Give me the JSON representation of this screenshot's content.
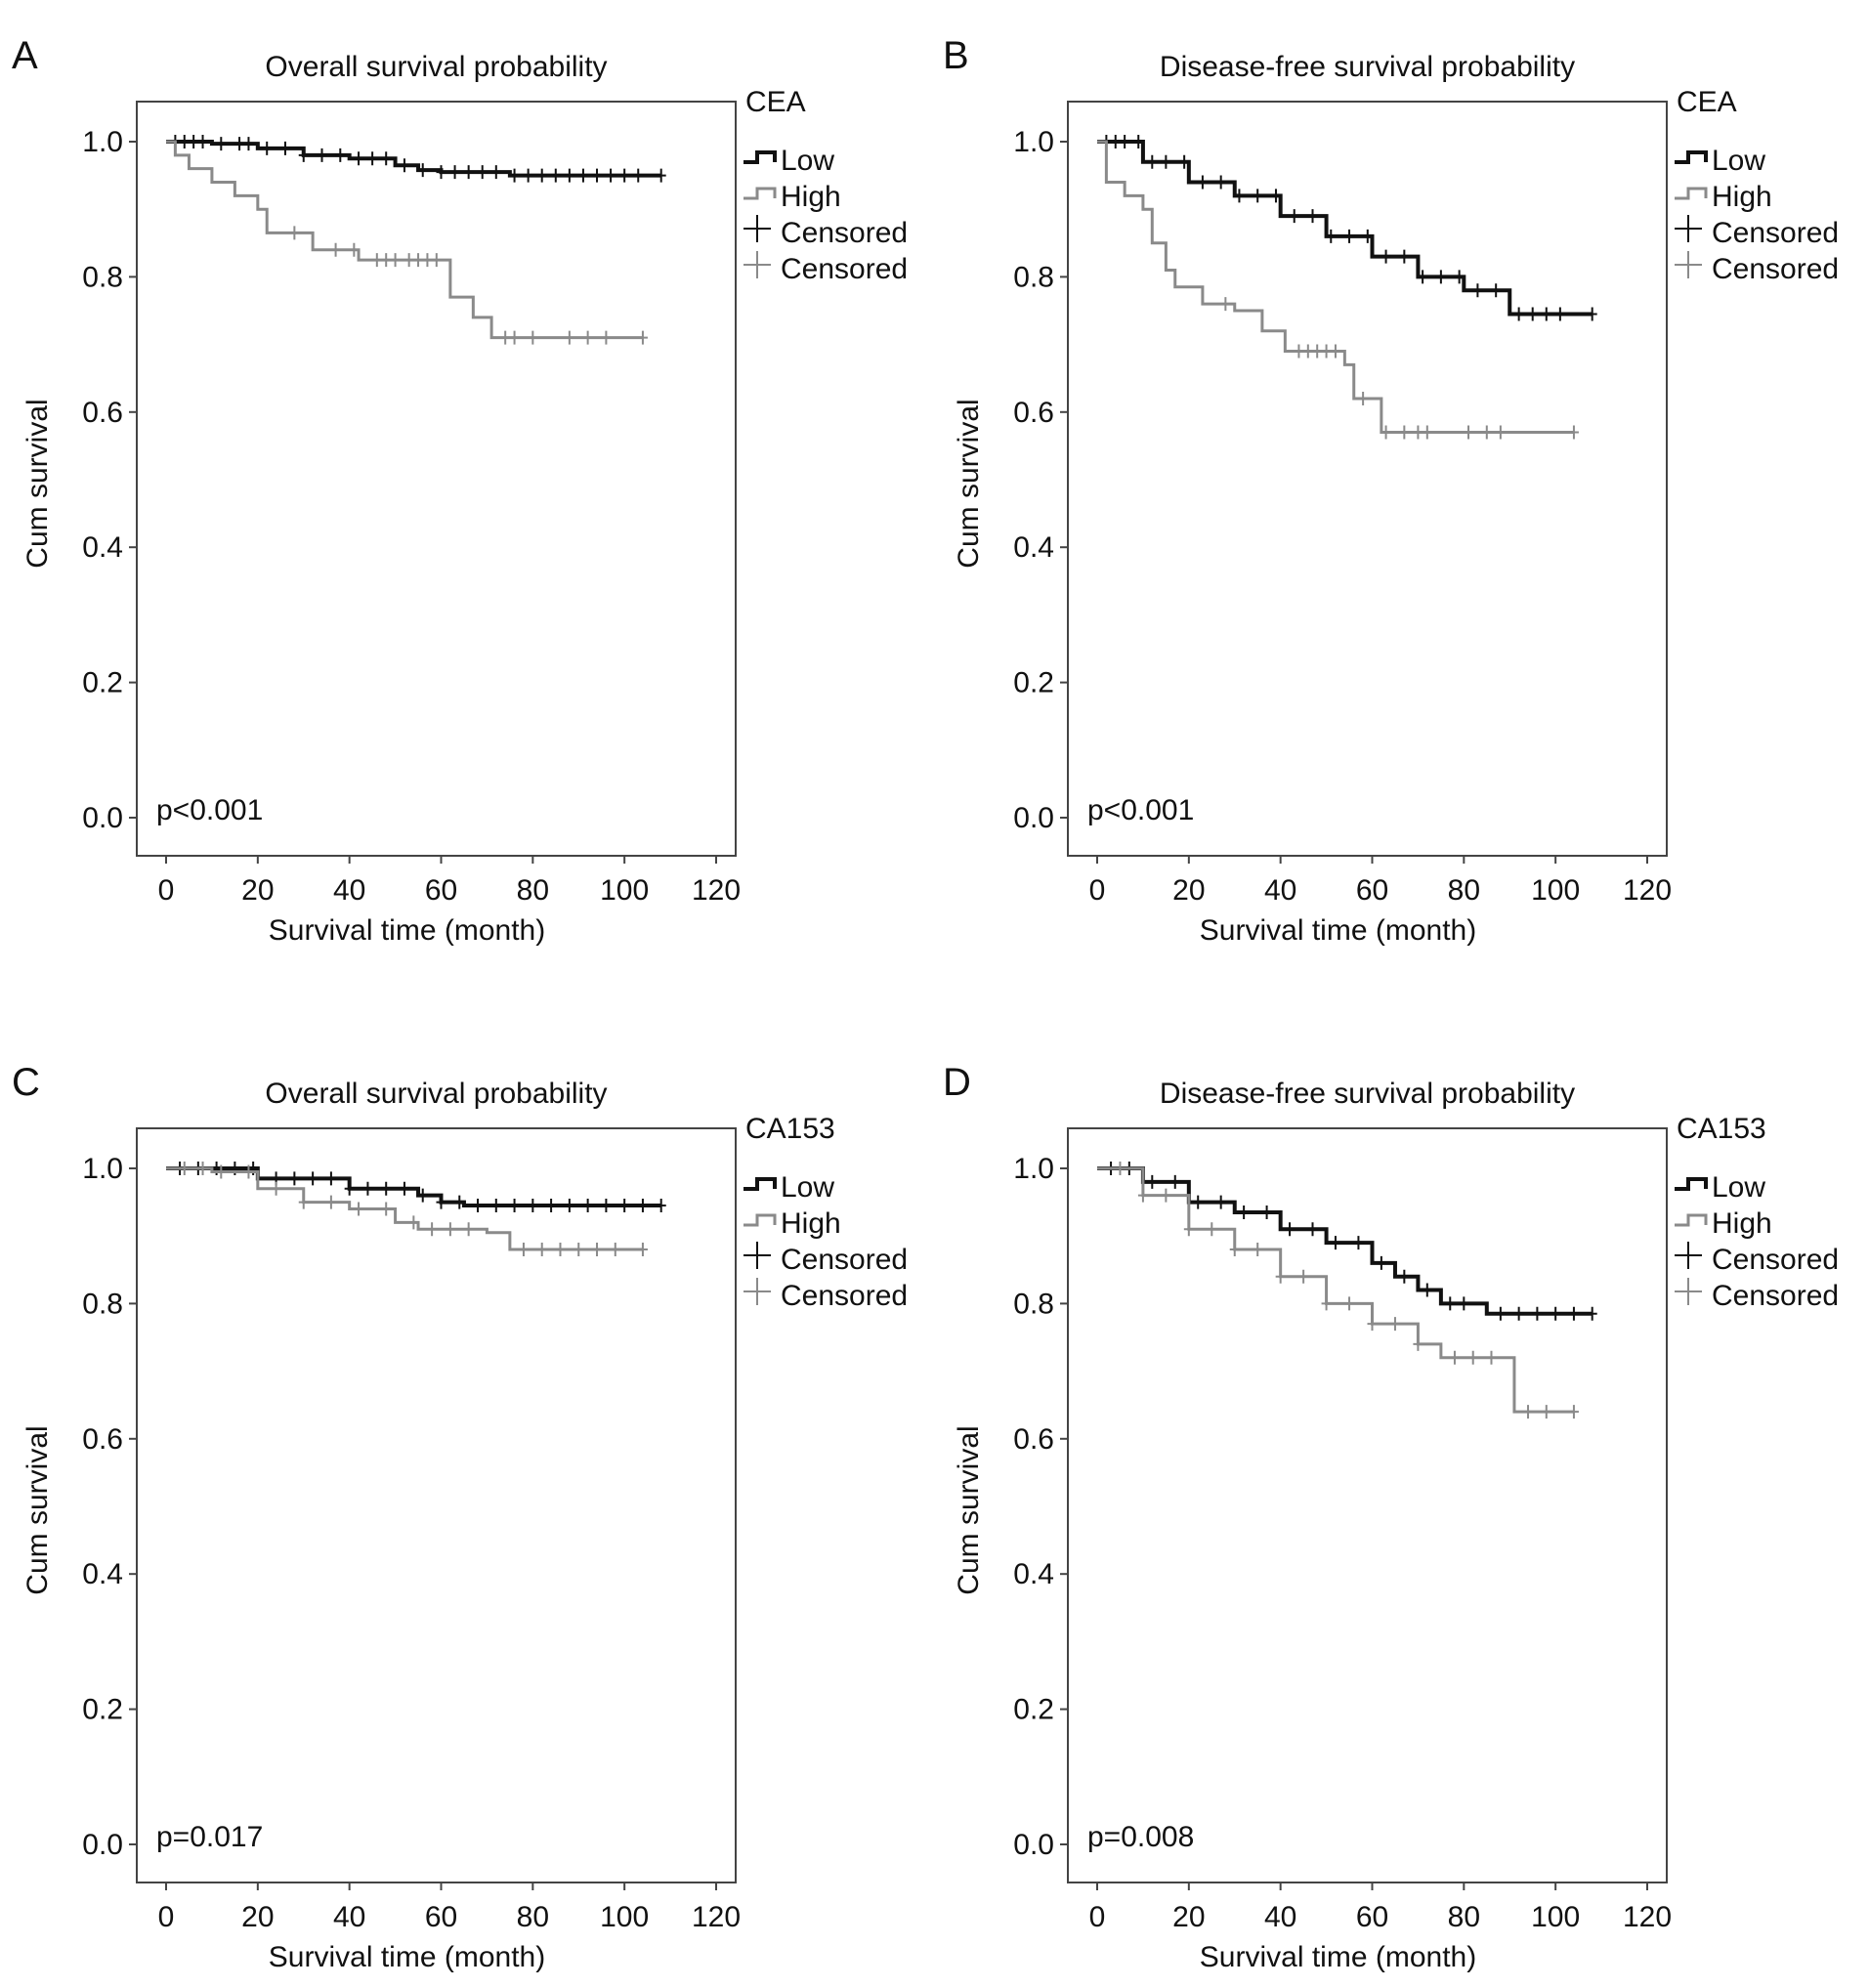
{
  "colors": {
    "low": "#111111",
    "high": "#8a8a8a"
  },
  "chart_data": [
    {
      "panel": "A",
      "type": "line",
      "title": "Overall survival probability",
      "legend_title": "CEA",
      "xlabel": "Survival time (month)",
      "ylabel": "Cum survival",
      "xlim": [
        0,
        120
      ],
      "ylim": [
        0,
        1
      ],
      "xticks": [
        "0",
        "20",
        "40",
        "60",
        "80",
        "100",
        "120"
      ],
      "yticks": [
        "0.0",
        "0.2",
        "0.4",
        "0.6",
        "0.8",
        "1.0"
      ],
      "pvalue": "p<0.001",
      "legend": [
        "Low",
        "High",
        "Censored",
        "Censored"
      ],
      "series": [
        {
          "name": "Low",
          "x": [
            0,
            10,
            20,
            30,
            40,
            50,
            55,
            60,
            75,
            108
          ],
          "y": [
            1,
            0.997,
            0.99,
            0.98,
            0.975,
            0.965,
            0.958,
            0.955,
            0.95,
            0.95
          ],
          "censored": [
            2,
            4,
            6,
            8,
            12,
            16,
            18,
            22,
            26,
            30,
            34,
            38,
            42,
            45,
            48,
            52,
            56,
            60,
            63,
            66,
            69,
            72,
            76,
            79,
            82,
            85,
            88,
            91,
            94,
            97,
            100,
            103,
            108
          ]
        },
        {
          "name": "High",
          "x": [
            0,
            2,
            5,
            10,
            15,
            20,
            22,
            32,
            42,
            62,
            67,
            71,
            104
          ],
          "y": [
            1,
            0.98,
            0.96,
            0.94,
            0.92,
            0.9,
            0.865,
            0.84,
            0.825,
            0.77,
            0.74,
            0.71,
            0.71
          ],
          "censored": [
            28,
            37,
            41,
            46,
            48,
            50,
            53,
            55,
            57,
            59,
            74,
            76,
            80,
            88,
            92,
            96,
            104
          ]
        }
      ]
    },
    {
      "panel": "B",
      "type": "line",
      "title": "Disease-free survival probability",
      "legend_title": "CEA",
      "xlabel": "Survival time (month)",
      "ylabel": "Cum survival",
      "xlim": [
        0,
        120
      ],
      "ylim": [
        0,
        1
      ],
      "xticks": [
        "0",
        "20",
        "40",
        "60",
        "80",
        "100",
        "120"
      ],
      "yticks": [
        "0.0",
        "0.2",
        "0.4",
        "0.6",
        "0.8",
        "1.0"
      ],
      "pvalue": "p<0.001",
      "legend": [
        "Low",
        "High",
        "Censored",
        "Censored"
      ],
      "series": [
        {
          "name": "Low",
          "x": [
            0,
            10,
            20,
            30,
            40,
            50,
            60,
            70,
            80,
            90,
            108
          ],
          "y": [
            1,
            0.97,
            0.94,
            0.92,
            0.89,
            0.86,
            0.83,
            0.8,
            0.78,
            0.745,
            0.745
          ],
          "censored": [
            2,
            4,
            6,
            9,
            12,
            15,
            19,
            23,
            27,
            31,
            35,
            39,
            43,
            47,
            51,
            55,
            59,
            63,
            67,
            71,
            75,
            79,
            83,
            87,
            92,
            95,
            98,
            101,
            108
          ]
        },
        {
          "name": "High",
          "x": [
            0,
            2,
            6,
            10,
            12,
            15,
            17,
            23,
            30,
            36,
            41,
            54,
            56,
            62,
            104
          ],
          "y": [
            1,
            0.94,
            0.92,
            0.9,
            0.85,
            0.81,
            0.785,
            0.76,
            0.75,
            0.72,
            0.69,
            0.67,
            0.62,
            0.57,
            0.57
          ],
          "censored": [
            28,
            44,
            46,
            48,
            50,
            52,
            58,
            63,
            67,
            70,
            72,
            81,
            85,
            88,
            104
          ]
        }
      ]
    },
    {
      "panel": "C",
      "type": "line",
      "title": "Overall survival probability",
      "legend_title": "CA153",
      "xlabel": "Survival time (month)",
      "ylabel": "Cum survival",
      "xlim": [
        0,
        120
      ],
      "ylim": [
        0,
        1
      ],
      "xticks": [
        "0",
        "20",
        "40",
        "60",
        "80",
        "100",
        "120"
      ],
      "yticks": [
        "0.0",
        "0.2",
        "0.4",
        "0.6",
        "0.8",
        "1.0"
      ],
      "pvalue": "p=0.017",
      "legend": [
        "Low",
        "High",
        "Censored",
        "Censored"
      ],
      "series": [
        {
          "name": "Low",
          "x": [
            0,
            20,
            40,
            55,
            60,
            65,
            108
          ],
          "y": [
            1,
            0.985,
            0.97,
            0.96,
            0.95,
            0.945,
            0.945
          ],
          "censored": [
            3,
            7,
            11,
            15,
            19,
            24,
            28,
            32,
            36,
            40,
            44,
            48,
            52,
            56,
            60,
            64,
            68,
            72,
            76,
            80,
            84,
            88,
            92,
            96,
            100,
            104,
            108
          ]
        },
        {
          "name": "High",
          "x": [
            0,
            10,
            20,
            30,
            40,
            50,
            55,
            70,
            75,
            104
          ],
          "y": [
            1,
            0.995,
            0.97,
            0.95,
            0.94,
            0.92,
            0.91,
            0.905,
            0.88,
            0.88
          ],
          "censored": [
            4,
            8,
            12,
            18,
            24,
            30,
            36,
            42,
            48,
            54,
            58,
            62,
            66,
            78,
            82,
            86,
            90,
            94,
            98,
            104
          ]
        }
      ]
    },
    {
      "panel": "D",
      "type": "line",
      "title": "Disease-free survival probability",
      "legend_title": "CA153",
      "xlabel": "Survival time (month)",
      "ylabel": "Cum survival",
      "xlim": [
        0,
        120
      ],
      "ylim": [
        0,
        1
      ],
      "xticks": [
        "0",
        "20",
        "40",
        "60",
        "80",
        "100",
        "120"
      ],
      "yticks": [
        "0.0",
        "0.2",
        "0.4",
        "0.6",
        "0.8",
        "1.0"
      ],
      "pvalue": "p=0.008",
      "legend": [
        "Low",
        "High",
        "Censored",
        "Censored"
      ],
      "series": [
        {
          "name": "Low",
          "x": [
            0,
            10,
            20,
            30,
            40,
            50,
            60,
            65,
            70,
            75,
            82,
            85,
            108
          ],
          "y": [
            1,
            0.98,
            0.95,
            0.935,
            0.91,
            0.89,
            0.86,
            0.84,
            0.82,
            0.8,
            0.8,
            0.785,
            0.785
          ],
          "censored": [
            3,
            7,
            12,
            17,
            22,
            27,
            32,
            37,
            42,
            47,
            52,
            57,
            62,
            67,
            72,
            77,
            80,
            88,
            92,
            96,
            100,
            104,
            108
          ]
        },
        {
          "name": "High",
          "x": [
            0,
            10,
            20,
            30,
            40,
            50,
            60,
            70,
            75,
            90,
            91,
            104
          ],
          "y": [
            1,
            0.96,
            0.91,
            0.88,
            0.84,
            0.8,
            0.77,
            0.74,
            0.72,
            0.72,
            0.64,
            0.64
          ],
          "censored": [
            5,
            10,
            15,
            20,
            25,
            30,
            35,
            40,
            45,
            50,
            55,
            60,
            65,
            70,
            78,
            82,
            86,
            94,
            98,
            104
          ]
        }
      ]
    }
  ]
}
